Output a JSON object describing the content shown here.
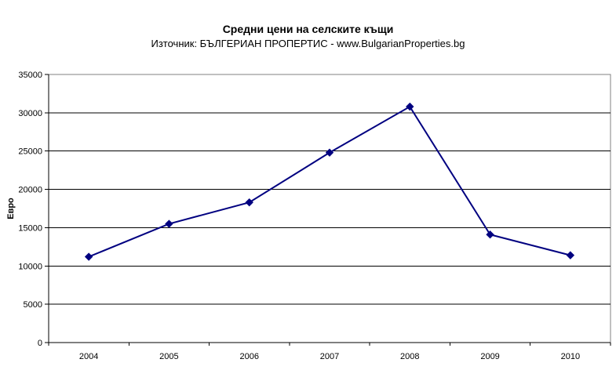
{
  "title": "Средни цени на селските къщи",
  "subtitle": "Източник: БЪЛГЕРИАН ПРОПЕРТИС - www.BulgarianProperties.bg",
  "y_axis_title": "Евро",
  "chart_data": {
    "type": "line",
    "title": "Средни цени на селските къщи",
    "subtitle": "Източник: БЪЛГЕРИАН ПРОПЕРТИС - www.BulgarianProperties.bg",
    "categories": [
      "2004",
      "2005",
      "2006",
      "2007",
      "2008",
      "2009",
      "2010"
    ],
    "values": [
      11200,
      15500,
      18300,
      24800,
      30800,
      14100,
      11400
    ],
    "xlabel": "",
    "ylabel": "Евро",
    "ylim": [
      0,
      35000
    ],
    "yticks": [
      0,
      5000,
      10000,
      15000,
      20000,
      25000,
      30000,
      35000
    ],
    "grid": true,
    "legend": false,
    "marker": "diamond"
  },
  "colors": {
    "line": "#000080",
    "marker": "#000080",
    "gridline": "#000000",
    "axis": "#000000",
    "plot_border": "#808080",
    "background": "#ffffff",
    "text": "#000000"
  }
}
